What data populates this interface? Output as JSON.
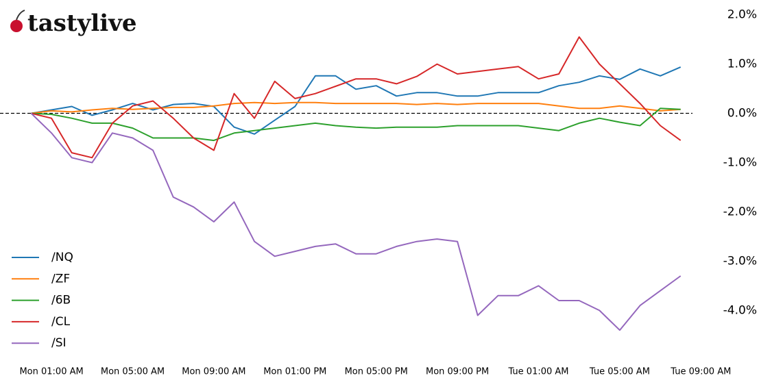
{
  "logo": "tastylive",
  "chart_data": {
    "type": "line",
    "categories": [
      null,
      "Mon 01:00 AM",
      null,
      null,
      null,
      "Mon 05:00 AM",
      null,
      null,
      null,
      "Mon 09:00 AM",
      null,
      null,
      null,
      "Mon 01:00 PM",
      null,
      null,
      null,
      "Mon 05:00 PM",
      null,
      null,
      null,
      "Mon 09:00 PM",
      null,
      null,
      null,
      "Tue 01:00 AM",
      null,
      null,
      null,
      "Tue 05:00 AM",
      null,
      null,
      null,
      "Tue 09:00 AM"
    ],
    "series": [
      {
        "name": "/NQ",
        "color": "#1f77b4",
        "values": [
          0,
          0.07,
          0.14,
          -0.04,
          0.07,
          0.2,
          0.07,
          0.18,
          0.2,
          0.14,
          -0.28,
          -0.42,
          -0.14,
          0.14,
          0.76,
          0.76,
          0.49,
          0.56,
          0.35,
          0.42,
          0.42,
          0.35,
          0.35,
          0.42,
          0.42,
          0.42,
          0.56,
          0.63,
          0.76,
          0.69,
          0.9,
          0.76,
          0.94,
          null
        ]
      },
      {
        "name": "/ZF",
        "color": "#ff7f0e",
        "values": [
          0,
          0.05,
          0.03,
          0.07,
          0.1,
          0.08,
          0.1,
          0.12,
          0.12,
          0.15,
          0.2,
          0.22,
          0.2,
          0.22,
          0.22,
          0.2,
          0.2,
          0.2,
          0.2,
          0.18,
          0.2,
          0.18,
          0.2,
          0.2,
          0.2,
          0.2,
          0.15,
          0.1,
          0.1,
          0.15,
          0.1,
          0.05,
          0.08,
          null
        ]
      },
      {
        "name": "/6B",
        "color": "#2ca02c",
        "values": [
          0,
          -0.02,
          -0.1,
          -0.2,
          -0.2,
          -0.3,
          -0.5,
          -0.5,
          -0.5,
          -0.55,
          -0.4,
          -0.35,
          -0.3,
          -0.25,
          -0.2,
          -0.25,
          -0.28,
          -0.3,
          -0.28,
          -0.28,
          -0.28,
          -0.25,
          -0.25,
          -0.25,
          -0.25,
          -0.3,
          -0.35,
          -0.2,
          -0.1,
          -0.18,
          -0.25,
          0.1,
          0.08,
          null
        ]
      },
      {
        "name": "/CL",
        "color": "#d62728",
        "values": [
          0,
          -0.1,
          -0.8,
          -0.9,
          -0.2,
          0.15,
          0.25,
          -0.1,
          -0.5,
          -0.75,
          0.4,
          -0.1,
          0.65,
          0.3,
          0.4,
          0.55,
          0.7,
          0.7,
          0.6,
          0.75,
          1.0,
          0.8,
          0.85,
          0.9,
          0.95,
          0.7,
          0.8,
          1.55,
          1.0,
          0.6,
          0.2,
          -0.25,
          -0.55,
          null
        ]
      },
      {
        "name": "/SI",
        "color": "#9467bd",
        "values": [
          0,
          -0.4,
          -0.9,
          -1.0,
          -0.4,
          -0.5,
          -0.75,
          -1.7,
          -1.9,
          -2.2,
          -1.8,
          -2.6,
          -2.9,
          -2.8,
          -2.7,
          -2.65,
          -2.85,
          -2.85,
          -2.7,
          -2.6,
          -2.55,
          -2.6,
          -4.1,
          -3.7,
          -3.7,
          -3.5,
          -3.8,
          -3.8,
          -4.0,
          -4.4,
          -3.9,
          -3.6,
          -3.3,
          null
        ]
      }
    ],
    "ylim": [
      -4.8,
      2.3
    ],
    "yticks": [
      {
        "value": 2,
        "label": "2.0%"
      },
      {
        "value": 1,
        "label": "1.0%"
      },
      {
        "value": 0,
        "label": "0.0%"
      },
      {
        "value": -1,
        "label": "-1.0%"
      },
      {
        "value": -2,
        "label": "-2.0%"
      },
      {
        "value": -3,
        "label": "-3.0%"
      },
      {
        "value": -4,
        "label": "-4.0%"
      }
    ],
    "zero_line": true,
    "legend": "lower-left"
  }
}
